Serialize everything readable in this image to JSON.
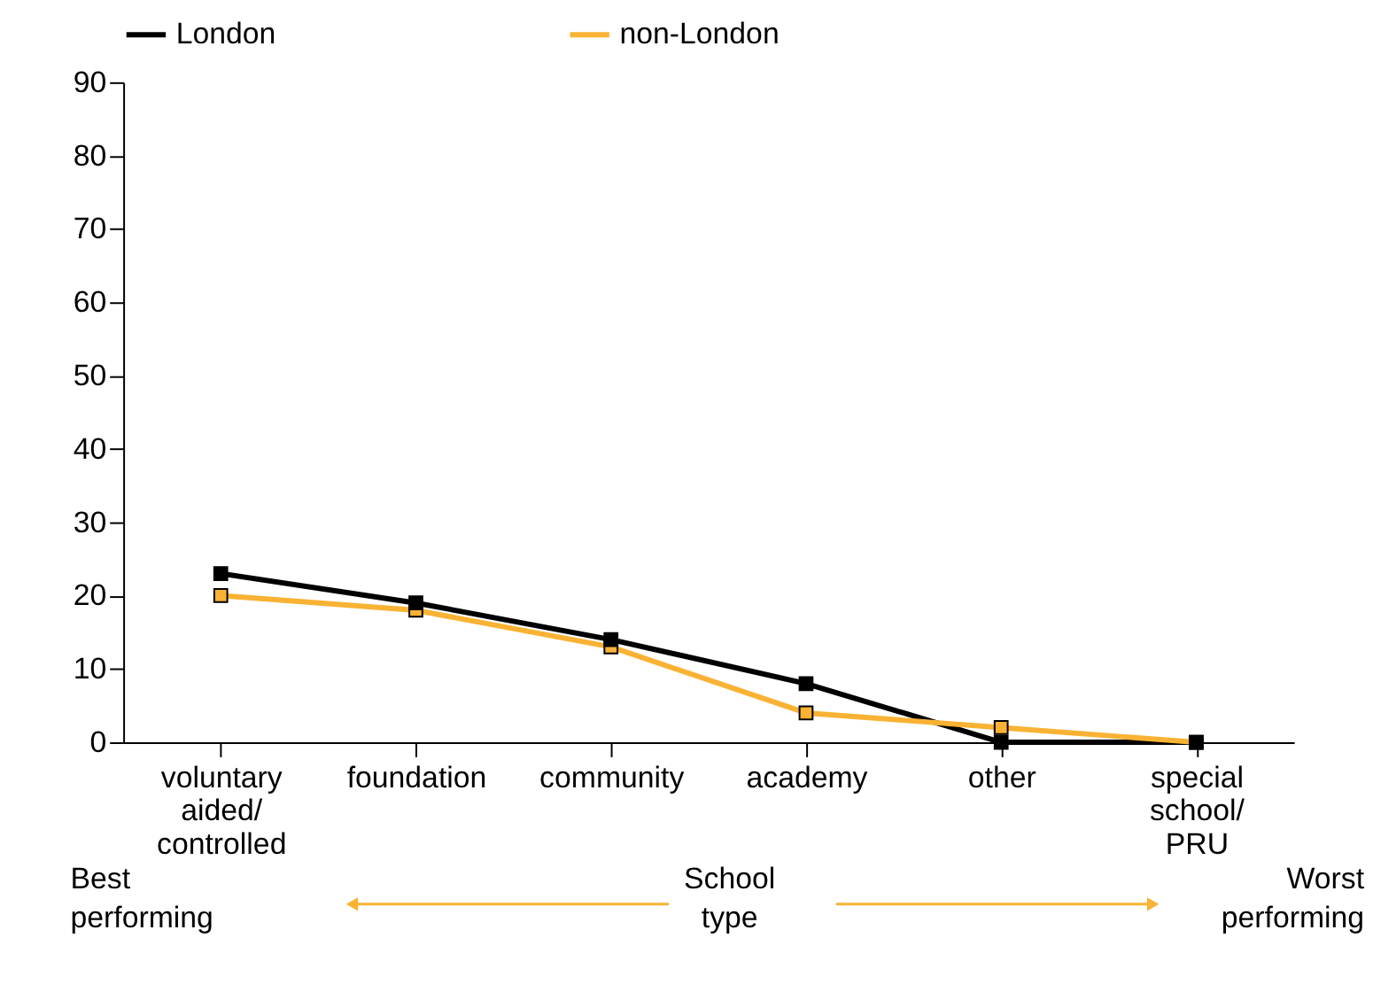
{
  "chart_data": {
    "type": "line",
    "categories": [
      "voluntary aided/controlled",
      "foundation",
      "community",
      "academy",
      "other",
      "special school/PRU"
    ],
    "series": [
      {
        "name": "London",
        "color": "#000000",
        "values": [
          23,
          19,
          14,
          8,
          0,
          0
        ]
      },
      {
        "name": "non-London",
        "color": "#f9b233",
        "values": [
          20,
          18,
          13,
          4,
          2,
          0
        ]
      }
    ],
    "xlabel": "School type",
    "annotations": [
      "Best performing",
      "Worst performing"
    ],
    "ylim": [
      0,
      90
    ],
    "yticks": [
      0,
      10,
      20,
      30,
      40,
      50,
      60,
      70,
      80,
      90
    ],
    "marker": "square",
    "line_style": "solid",
    "grid": false,
    "legend": "top left"
  }
}
